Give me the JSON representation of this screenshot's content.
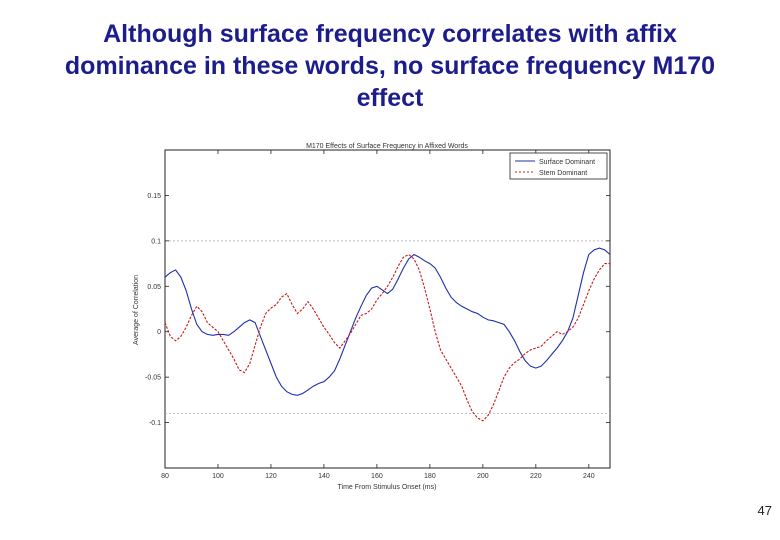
{
  "slide": {
    "title_lines": [
      "Although surface frequency correlates with affix",
      "dominance in these words, no surface frequency M170",
      "effect"
    ],
    "page_number": "47"
  },
  "chart_data": {
    "type": "line",
    "title": "M170 Effects of Surface Frequency in Affixed Words",
    "xlabel": "Time From Stimulus Onset (ms)",
    "ylabel": "Average of Correlation",
    "xlim": [
      80,
      248
    ],
    "ylim": [
      -0.15,
      0.2
    ],
    "xticks": [
      80,
      100,
      120,
      140,
      160,
      180,
      200,
      220,
      240
    ],
    "yticks": [
      -0.1,
      -0.05,
      0,
      0.05,
      0.1,
      0.15
    ],
    "ytick_labels": [
      "-0.1",
      "-0.05",
      "0",
      "0.05",
      "0.1",
      "0.15"
    ],
    "reference_lines": [
      0.1,
      -0.09
    ],
    "legend_position": "top-right",
    "series": [
      {
        "name": "Surface Dominant",
        "color": "#1f2fa8",
        "style": "solid",
        "x": [
          80,
          82,
          84,
          86,
          88,
          90,
          92,
          94,
          96,
          98,
          100,
          102,
          104,
          106,
          108,
          110,
          112,
          114,
          116,
          118,
          120,
          122,
          124,
          126,
          128,
          130,
          132,
          134,
          136,
          138,
          140,
          142,
          144,
          146,
          148,
          150,
          152,
          154,
          156,
          158,
          160,
          162,
          164,
          166,
          168,
          170,
          172,
          174,
          176,
          178,
          180,
          182,
          184,
          186,
          188,
          190,
          192,
          194,
          196,
          198,
          200,
          202,
          204,
          206,
          208,
          210,
          212,
          214,
          216,
          218,
          220,
          222,
          224,
          226,
          228,
          230,
          232,
          234,
          236,
          238,
          240,
          242,
          244,
          246,
          248
        ],
        "values": [
          0.06,
          0.065,
          0.068,
          0.06,
          0.045,
          0.025,
          0.008,
          0.0,
          -0.003,
          -0.004,
          -0.003,
          -0.003,
          -0.004,
          0.0,
          0.005,
          0.01,
          0.013,
          0.01,
          -0.005,
          -0.02,
          -0.035,
          -0.05,
          -0.06,
          -0.066,
          -0.069,
          -0.07,
          -0.068,
          -0.064,
          -0.06,
          -0.057,
          -0.055,
          -0.05,
          -0.043,
          -0.03,
          -0.015,
          0.0,
          0.015,
          0.028,
          0.04,
          0.048,
          0.05,
          0.046,
          0.042,
          0.047,
          0.058,
          0.07,
          0.08,
          0.085,
          0.082,
          0.078,
          0.075,
          0.07,
          0.06,
          0.048,
          0.038,
          0.032,
          0.028,
          0.025,
          0.022,
          0.02,
          0.016,
          0.013,
          0.012,
          0.01,
          0.008,
          0.0,
          -0.01,
          -0.022,
          -0.032,
          -0.038,
          -0.04,
          -0.038,
          -0.032,
          -0.025,
          -0.018,
          -0.01,
          0.0,
          0.015,
          0.04,
          0.065,
          0.085,
          0.09,
          0.092,
          0.09,
          0.085
        ]
      },
      {
        "name": "Stem Dominant",
        "color": "#cc1818",
        "style": "dashed",
        "x": [
          80,
          82,
          84,
          86,
          88,
          90,
          92,
          94,
          96,
          98,
          100,
          102,
          104,
          106,
          108,
          110,
          112,
          114,
          116,
          118,
          120,
          122,
          124,
          126,
          128,
          130,
          132,
          134,
          136,
          138,
          140,
          142,
          144,
          146,
          148,
          150,
          152,
          154,
          156,
          158,
          160,
          162,
          164,
          166,
          168,
          170,
          172,
          174,
          176,
          178,
          180,
          182,
          184,
          186,
          188,
          190,
          192,
          194,
          196,
          198,
          200,
          202,
          204,
          206,
          208,
          210,
          212,
          214,
          216,
          218,
          220,
          222,
          224,
          226,
          228,
          230,
          232,
          234,
          236,
          238,
          240,
          242,
          244,
          246,
          248
        ],
        "values": [
          0.01,
          -0.005,
          -0.01,
          -0.005,
          0.005,
          0.018,
          0.028,
          0.022,
          0.01,
          0.005,
          0.0,
          -0.01,
          -0.02,
          -0.03,
          -0.042,
          -0.045,
          -0.035,
          -0.015,
          0.005,
          0.02,
          0.026,
          0.03,
          0.038,
          0.042,
          0.03,
          0.02,
          0.025,
          0.033,
          0.025,
          0.015,
          0.005,
          -0.003,
          -0.012,
          -0.018,
          -0.01,
          -0.002,
          0.008,
          0.018,
          0.02,
          0.025,
          0.035,
          0.042,
          0.05,
          0.06,
          0.072,
          0.082,
          0.085,
          0.08,
          0.068,
          0.048,
          0.025,
          0.0,
          -0.02,
          -0.03,
          -0.04,
          -0.05,
          -0.06,
          -0.075,
          -0.088,
          -0.095,
          -0.098,
          -0.092,
          -0.08,
          -0.065,
          -0.05,
          -0.04,
          -0.034,
          -0.03,
          -0.024,
          -0.02,
          -0.018,
          -0.016,
          -0.01,
          -0.005,
          0.0,
          -0.003,
          0.0,
          0.005,
          0.015,
          0.03,
          0.045,
          0.058,
          0.068,
          0.075,
          0.075
        ]
      }
    ]
  }
}
